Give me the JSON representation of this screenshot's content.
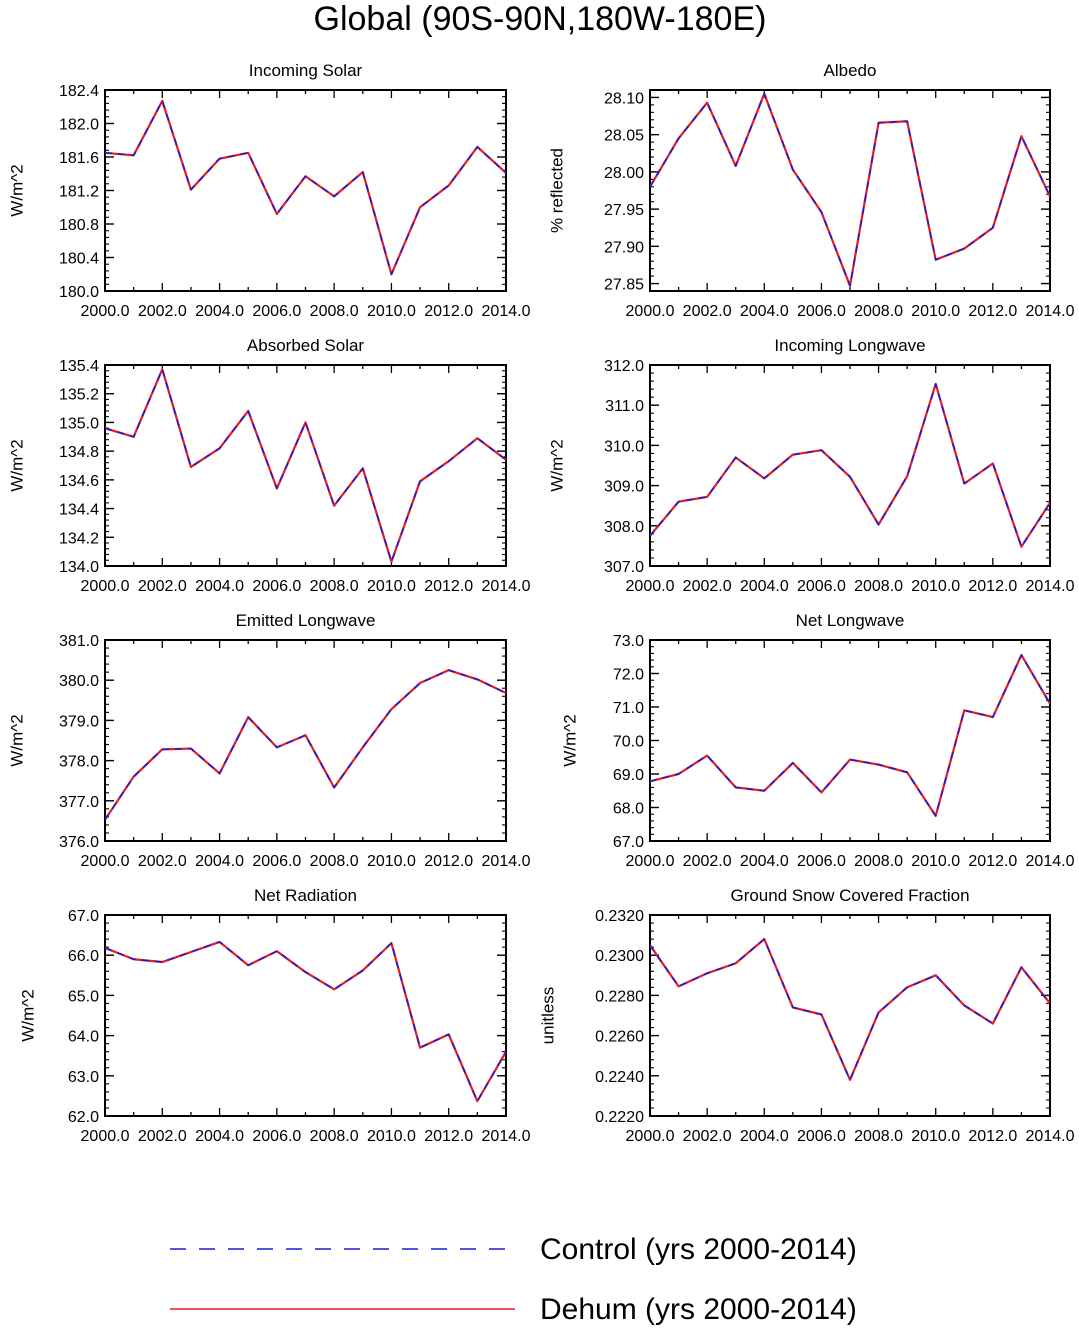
{
  "title": "Global (90S-90N,180W-180E)",
  "colors": {
    "control": "#1c1cdc",
    "dehum": "#e81c1c",
    "axis": "#000000"
  },
  "legend": {
    "control_label": "Control (yrs 2000-2014)",
    "dehum_label": "Dehum (yrs 2000-2014)"
  },
  "chart_data": [
    {
      "type": "line",
      "title": "Incoming Solar",
      "ylabel": "W/m^2",
      "xlabel": "",
      "x": [
        2000,
        2001,
        2002,
        2003,
        2004,
        2005,
        2006,
        2007,
        2008,
        2009,
        2010,
        2011,
        2012,
        2013,
        2014
      ],
      "xlim": [
        2000,
        2014
      ],
      "xticks": [
        "2000.0",
        "2002.0",
        "2004.0",
        "2006.0",
        "2008.0",
        "2010.0",
        "2012.0",
        "2014.0"
      ],
      "ylim": [
        180.0,
        182.4
      ],
      "yticks": [
        "180.0",
        "180.4",
        "180.8",
        "181.2",
        "181.6",
        "182.0",
        "182.4"
      ],
      "series": [
        {
          "name": "Control (yrs 2000-2014)",
          "values": [
            181.65,
            181.62,
            182.27,
            181.21,
            181.58,
            181.65,
            180.92,
            181.37,
            181.13,
            181.42,
            180.2,
            181.0,
            181.26,
            181.72,
            181.41
          ]
        },
        {
          "name": "Dehum (yrs 2000-2014)",
          "values": [
            181.65,
            181.62,
            182.27,
            181.21,
            181.58,
            181.65,
            180.92,
            181.37,
            181.13,
            181.42,
            180.2,
            181.0,
            181.26,
            181.72,
            181.41
          ]
        }
      ]
    },
    {
      "type": "line",
      "title": "Albedo",
      "ylabel": "% reflected",
      "xlabel": "",
      "x": [
        2000,
        2001,
        2002,
        2003,
        2004,
        2005,
        2006,
        2007,
        2008,
        2009,
        2010,
        2011,
        2012,
        2013,
        2014
      ],
      "xlim": [
        2000,
        2014
      ],
      "xticks": [
        "2000.0",
        "2002.0",
        "2004.0",
        "2006.0",
        "2008.0",
        "2010.0",
        "2012.0",
        "2014.0"
      ],
      "ylim": [
        27.84,
        28.11
      ],
      "yticks": [
        "27.85",
        "27.90",
        "27.95",
        "28.00",
        "28.05",
        "28.10"
      ],
      "series": [
        {
          "name": "Control (yrs 2000-2014)",
          "values": [
            27.98,
            28.045,
            28.093,
            28.008,
            28.105,
            28.003,
            27.946,
            27.847,
            28.066,
            28.068,
            27.882,
            27.897,
            27.925,
            28.048,
            27.967
          ]
        },
        {
          "name": "Dehum (yrs 2000-2014)",
          "values": [
            27.98,
            28.045,
            28.093,
            28.008,
            28.105,
            28.003,
            27.946,
            27.847,
            28.066,
            28.068,
            27.882,
            27.897,
            27.925,
            28.048,
            27.967
          ]
        }
      ]
    },
    {
      "type": "line",
      "title": "Absorbed Solar",
      "ylabel": "W/m^2",
      "xlabel": "",
      "x": [
        2000,
        2001,
        2002,
        2003,
        2004,
        2005,
        2006,
        2007,
        2008,
        2009,
        2010,
        2011,
        2012,
        2013,
        2014
      ],
      "xlim": [
        2000,
        2014
      ],
      "xticks": [
        "2000.0",
        "2002.0",
        "2004.0",
        "2006.0",
        "2008.0",
        "2010.0",
        "2012.0",
        "2014.0"
      ],
      "ylim": [
        134.0,
        135.4
      ],
      "yticks": [
        "134.0",
        "134.2",
        "134.4",
        "134.6",
        "134.8",
        "135.0",
        "135.2",
        "135.4"
      ],
      "series": [
        {
          "name": "Control (yrs 2000-2014)",
          "values": [
            134.96,
            134.9,
            135.37,
            134.69,
            134.82,
            135.08,
            134.54,
            135.0,
            134.42,
            134.68,
            134.03,
            134.59,
            134.73,
            134.89,
            134.74
          ]
        },
        {
          "name": "Dehum (yrs 2000-2014)",
          "values": [
            134.96,
            134.9,
            135.37,
            134.69,
            134.82,
            135.08,
            134.54,
            135.0,
            134.42,
            134.68,
            134.03,
            134.59,
            134.73,
            134.89,
            134.74
          ]
        }
      ]
    },
    {
      "type": "line",
      "title": "Incoming Longwave",
      "ylabel": "W/m^2",
      "xlabel": "",
      "x": [
        2000,
        2001,
        2002,
        2003,
        2004,
        2005,
        2006,
        2007,
        2008,
        2009,
        2010,
        2011,
        2012,
        2013,
        2014
      ],
      "xlim": [
        2000,
        2014
      ],
      "xticks": [
        "2000.0",
        "2002.0",
        "2004.0",
        "2006.0",
        "2008.0",
        "2010.0",
        "2012.0",
        "2014.0"
      ],
      "ylim": [
        307.0,
        312.0
      ],
      "yticks": [
        "307.0",
        "308.0",
        "309.0",
        "310.0",
        "311.0",
        "312.0"
      ],
      "series": [
        {
          "name": "Control (yrs 2000-2014)",
          "values": [
            307.75,
            308.6,
            308.72,
            309.7,
            309.18,
            309.77,
            309.88,
            309.22,
            308.03,
            309.23,
            311.53,
            309.05,
            309.55,
            307.48,
            308.57
          ]
        },
        {
          "name": "Dehum (yrs 2000-2014)",
          "values": [
            307.75,
            308.6,
            308.72,
            309.7,
            309.18,
            309.77,
            309.88,
            309.22,
            308.03,
            309.23,
            311.53,
            309.05,
            309.55,
            307.48,
            308.57
          ]
        }
      ]
    },
    {
      "type": "line",
      "title": "Emitted Longwave",
      "ylabel": "W/m^2",
      "xlabel": "",
      "x": [
        2000,
        2001,
        2002,
        2003,
        2004,
        2005,
        2006,
        2007,
        2008,
        2009,
        2010,
        2011,
        2012,
        2013,
        2014
      ],
      "xlim": [
        2000,
        2014
      ],
      "xticks": [
        "2000.0",
        "2002.0",
        "2004.0",
        "2006.0",
        "2008.0",
        "2010.0",
        "2012.0",
        "2014.0"
      ],
      "ylim": [
        376.0,
        381.0
      ],
      "yticks": [
        "376.0",
        "377.0",
        "378.0",
        "379.0",
        "380.0",
        "381.0"
      ],
      "series": [
        {
          "name": "Control (yrs 2000-2014)",
          "values": [
            376.53,
            377.6,
            378.28,
            378.3,
            377.68,
            379.08,
            378.33,
            378.63,
            377.33,
            378.33,
            379.28,
            379.93,
            380.25,
            380.02,
            379.68
          ]
        },
        {
          "name": "Dehum (yrs 2000-2014)",
          "values": [
            376.53,
            377.6,
            378.28,
            378.3,
            377.68,
            379.08,
            378.33,
            378.63,
            377.33,
            378.33,
            379.28,
            379.93,
            380.25,
            380.02,
            379.68
          ]
        }
      ]
    },
    {
      "type": "line",
      "title": "Net Longwave",
      "ylabel": "W/m^2",
      "xlabel": "",
      "x": [
        2000,
        2001,
        2002,
        2003,
        2004,
        2005,
        2006,
        2007,
        2008,
        2009,
        2010,
        2011,
        2012,
        2013,
        2014
      ],
      "xlim": [
        2000,
        2014
      ],
      "xticks": [
        "2000.0",
        "2002.0",
        "2004.0",
        "2006.0",
        "2008.0",
        "2010.0",
        "2012.0",
        "2014.0"
      ],
      "ylim": [
        67.0,
        73.0
      ],
      "yticks": [
        "67.0",
        "68.0",
        "69.0",
        "70.0",
        "71.0",
        "72.0",
        "73.0"
      ],
      "series": [
        {
          "name": "Control (yrs 2000-2014)",
          "values": [
            68.78,
            69.0,
            69.55,
            68.6,
            68.5,
            69.33,
            68.45,
            69.43,
            69.28,
            69.05,
            67.75,
            70.9,
            70.7,
            72.55,
            71.1
          ]
        },
        {
          "name": "Dehum (yrs 2000-2014)",
          "values": [
            68.78,
            69.0,
            69.55,
            68.6,
            68.5,
            69.33,
            68.45,
            69.43,
            69.28,
            69.05,
            67.75,
            70.9,
            70.7,
            72.55,
            71.1
          ]
        }
      ]
    },
    {
      "type": "line",
      "title": "Net Radiation",
      "ylabel": "W/m^2",
      "xlabel": "",
      "x": [
        2000,
        2001,
        2002,
        2003,
        2004,
        2005,
        2006,
        2007,
        2008,
        2009,
        2010,
        2011,
        2012,
        2013,
        2014
      ],
      "xlim": [
        2000,
        2014
      ],
      "xticks": [
        "2000.0",
        "2002.0",
        "2004.0",
        "2006.0",
        "2008.0",
        "2010.0",
        "2012.0",
        "2014.0"
      ],
      "ylim": [
        62.0,
        67.0
      ],
      "yticks": [
        "62.0",
        "63.0",
        "64.0",
        "65.0",
        "66.0",
        "67.0"
      ],
      "series": [
        {
          "name": "Control (yrs 2000-2014)",
          "values": [
            66.18,
            65.9,
            65.83,
            66.08,
            66.33,
            65.75,
            66.1,
            65.58,
            65.15,
            65.62,
            66.3,
            63.7,
            64.03,
            62.37,
            63.6
          ]
        },
        {
          "name": "Dehum (yrs 2000-2014)",
          "values": [
            66.18,
            65.9,
            65.83,
            66.08,
            66.33,
            65.75,
            66.1,
            65.58,
            65.15,
            65.62,
            66.3,
            63.7,
            64.03,
            62.37,
            63.6
          ]
        }
      ]
    },
    {
      "type": "line",
      "title": "Ground Snow Covered Fraction",
      "ylabel": "unitless",
      "xlabel": "",
      "x": [
        2000,
        2001,
        2002,
        2003,
        2004,
        2005,
        2006,
        2007,
        2008,
        2009,
        2010,
        2011,
        2012,
        2013,
        2014
      ],
      "xlim": [
        2000,
        2014
      ],
      "xticks": [
        "2000.0",
        "2002.0",
        "2004.0",
        "2006.0",
        "2008.0",
        "2010.0",
        "2012.0",
        "2014.0"
      ],
      "ylim": [
        0.222,
        0.232
      ],
      "yticks": [
        "0.2220",
        "0.2240",
        "0.2260",
        "0.2280",
        "0.2300",
        "0.2320"
      ],
      "series": [
        {
          "name": "Control (yrs 2000-2014)",
          "values": [
            0.2305,
            0.22845,
            0.2291,
            0.2296,
            0.2308,
            0.2274,
            0.22705,
            0.2238,
            0.22715,
            0.2284,
            0.229,
            0.2275,
            0.2266,
            0.2294,
            0.2276
          ]
        },
        {
          "name": "Dehum (yrs 2000-2014)",
          "values": [
            0.2305,
            0.22845,
            0.2291,
            0.2296,
            0.2308,
            0.2274,
            0.22705,
            0.2238,
            0.22715,
            0.2284,
            0.229,
            0.2275,
            0.2266,
            0.2294,
            0.2276
          ]
        }
      ]
    }
  ]
}
